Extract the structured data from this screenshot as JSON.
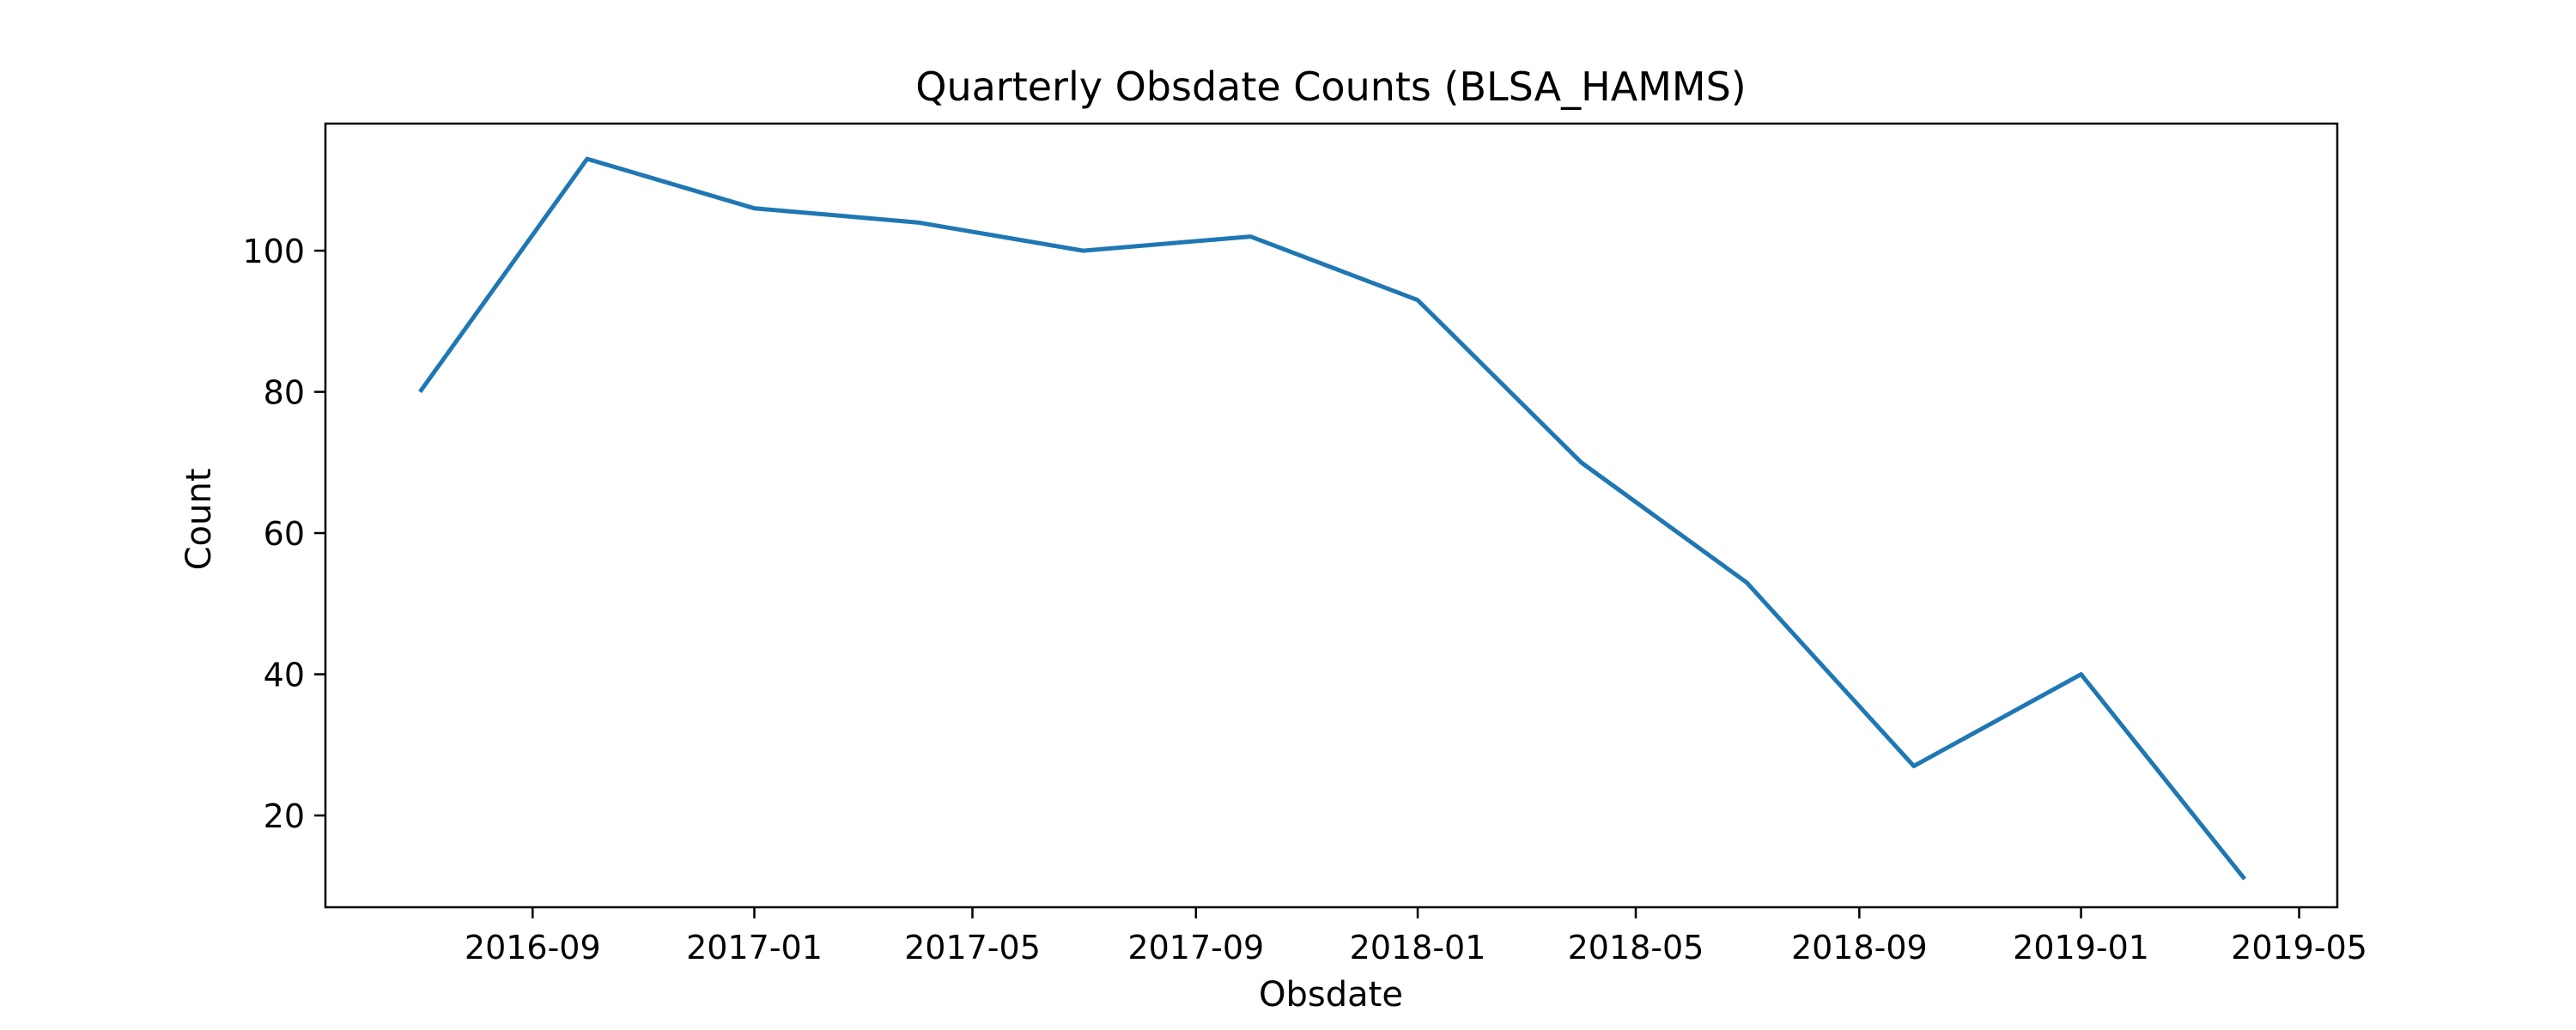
{
  "chart_data": {
    "type": "line",
    "title": "Quarterly Obsdate Counts (BLSA_HAMMS)",
    "xlabel": "Obsdate",
    "ylabel": "Count",
    "x_type": "date",
    "xlim": [
      "2016-05-10",
      "2019-05-22"
    ],
    "ylim": [
      7,
      118
    ],
    "grid": false,
    "colors": {
      "series_line": "#1f77b4",
      "axes": "#000000",
      "background": "#ffffff"
    },
    "x_ticks": [
      {
        "value": "2016-09-01",
        "label": "2016-09"
      },
      {
        "value": "2017-01-01",
        "label": "2017-01"
      },
      {
        "value": "2017-05-01",
        "label": "2017-05"
      },
      {
        "value": "2017-09-01",
        "label": "2017-09"
      },
      {
        "value": "2018-01-01",
        "label": "2018-01"
      },
      {
        "value": "2018-05-01",
        "label": "2018-05"
      },
      {
        "value": "2018-09-01",
        "label": "2018-09"
      },
      {
        "value": "2019-01-01",
        "label": "2019-01"
      },
      {
        "value": "2019-05-01",
        "label": "2019-05"
      }
    ],
    "y_ticks": [
      {
        "value": 20,
        "label": "20"
      },
      {
        "value": 40,
        "label": "40"
      },
      {
        "value": 60,
        "label": "60"
      },
      {
        "value": 80,
        "label": "80"
      },
      {
        "value": 100,
        "label": "100"
      }
    ],
    "series": [
      {
        "x": [
          "2016-07-01",
          "2016-10-01",
          "2017-01-01",
          "2017-04-01",
          "2017-07-01",
          "2017-10-01",
          "2018-01-01",
          "2018-04-01",
          "2018-07-01",
          "2018-10-01",
          "2019-01-01",
          "2019-04-01"
        ],
        "values": [
          80,
          113,
          106,
          104,
          100,
          102,
          93,
          70,
          53,
          27,
          40,
          11
        ]
      }
    ]
  }
}
